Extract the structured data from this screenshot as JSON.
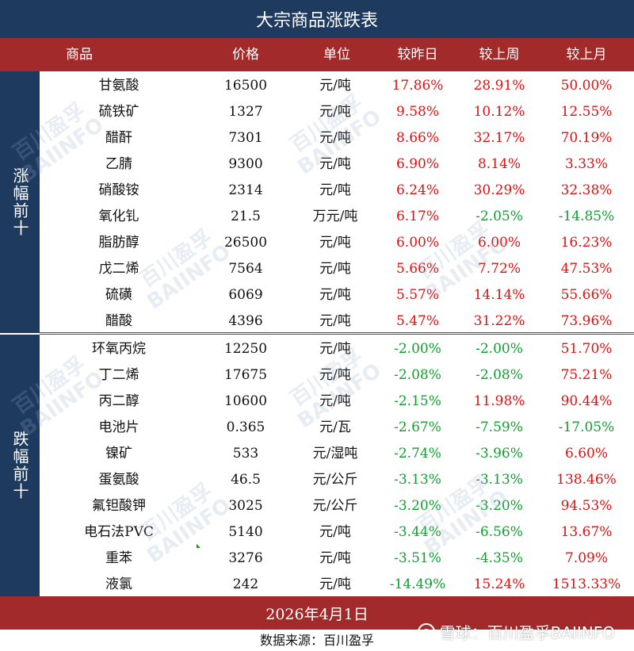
{
  "title": "大宗商品涨跌表",
  "headers": {
    "name": "商品",
    "price": "价格",
    "unit": "单位",
    "day": "较昨日",
    "week": "较上周",
    "month": "较上月"
  },
  "sections": {
    "top_label": "涨幅前十",
    "bottom_label": "跌幅前十"
  },
  "rows": [
    {
      "name": "甘氨酸",
      "price": "16500",
      "unit": "元/吨",
      "day": "17.86%",
      "week": "28.91%",
      "month": "50.00%"
    },
    {
      "name": "硫铁矿",
      "price": "1327",
      "unit": "元/吨",
      "day": "9.58%",
      "week": "10.12%",
      "month": "12.55%"
    },
    {
      "name": "醋酐",
      "price": "7301",
      "unit": "元/吨",
      "day": "8.66%",
      "week": "32.17%",
      "month": "70.19%"
    },
    {
      "name": "乙腈",
      "price": "9300",
      "unit": "元/吨",
      "day": "6.90%",
      "week": "8.14%",
      "month": "3.33%"
    },
    {
      "name": "硝酸铵",
      "price": "2314",
      "unit": "元/吨",
      "day": "6.24%",
      "week": "30.29%",
      "month": "32.38%"
    },
    {
      "name": "氧化钆",
      "price": "21.5",
      "unit": "万元/吨",
      "day": "6.17%",
      "week": "-2.05%",
      "month": "-14.85%"
    },
    {
      "name": "脂肪醇",
      "price": "26500",
      "unit": "元/吨",
      "day": "6.00%",
      "week": "6.00%",
      "month": "16.23%"
    },
    {
      "name": "戊二烯",
      "price": "7564",
      "unit": "元/吨",
      "day": "5.66%",
      "week": "7.72%",
      "month": "47.53%"
    },
    {
      "name": "硫磺",
      "price": "6069",
      "unit": "元/吨",
      "day": "5.57%",
      "week": "14.14%",
      "month": "55.66%"
    },
    {
      "name": "醋酸",
      "price": "4396",
      "unit": "元/吨",
      "day": "5.47%",
      "week": "31.22%",
      "month": "73.96%"
    },
    {
      "name": "环氧丙烷",
      "price": "12250",
      "unit": "元/吨",
      "day": "-2.00%",
      "week": "-2.00%",
      "month": "51.70%"
    },
    {
      "name": "丁二烯",
      "price": "17675",
      "unit": "元/吨",
      "day": "-2.08%",
      "week": "-2.08%",
      "month": "75.21%"
    },
    {
      "name": "丙二醇",
      "price": "10600",
      "unit": "元/吨",
      "day": "-2.15%",
      "week": "11.98%",
      "month": "90.44%"
    },
    {
      "name": "电池片",
      "price": "0.365",
      "unit": "元/瓦",
      "day": "-2.67%",
      "week": "-7.59%",
      "month": "-17.05%"
    },
    {
      "name": "镍矿",
      "price": "533",
      "unit": "元/湿吨",
      "day": "-2.74%",
      "week": "-3.96%",
      "month": "6.60%"
    },
    {
      "name": "蛋氨酸",
      "price": "46.5",
      "unit": "元/公斤",
      "day": "-3.13%",
      "week": "-3.13%",
      "month": "138.46%"
    },
    {
      "name": "氟钽酸钾",
      "price": "3025",
      "unit": "元/公斤",
      "day": "-3.20%",
      "week": "-3.20%",
      "month": "94.53%"
    },
    {
      "name": "电石法PVC",
      "price": "5140",
      "unit": "元/吨",
      "day": "-3.44%",
      "week": "-6.56%",
      "month": "13.67%"
    },
    {
      "name": "重苯",
      "price": "3276",
      "unit": "元/吨",
      "day": "-3.51%",
      "week": "-4.35%",
      "month": "7.09%"
    },
    {
      "name": "液氯",
      "price": "242",
      "unit": "元/吨",
      "day": "-14.49%",
      "week": "15.24%",
      "month": "1513.33%"
    }
  ],
  "footer": {
    "date": "2026年4月1日",
    "source": "数据来源：百川盈孚"
  },
  "watermark": {
    "line1": "百川盈孚",
    "line2": "BAIINFO",
    "xueqiu": "雪球：百川盈孚BAIINFO"
  },
  "colors": {
    "navy": "#1f3a5f",
    "maroon": "#a32a2a",
    "up": "#e01010",
    "down": "#10a030"
  }
}
